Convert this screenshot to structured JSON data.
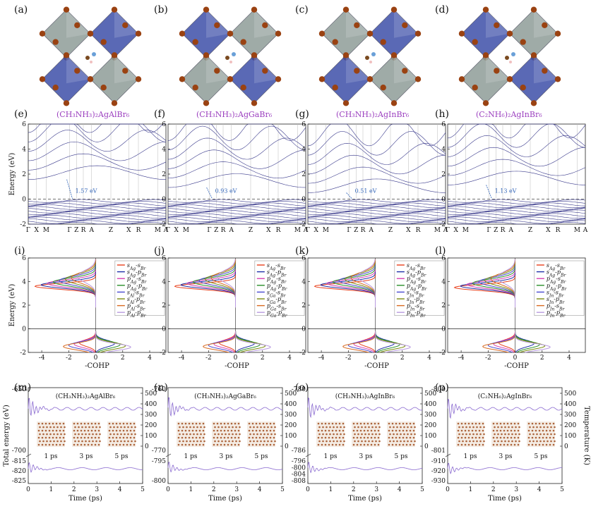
{
  "panel_labels": {
    "structures": [
      "(a)",
      "(b)",
      "(c)",
      "(d)"
    ],
    "bands": [
      "(e)",
      "(f)",
      "(g)",
      "(h)"
    ],
    "cohp": [
      "(i)",
      "(j)",
      "(k)",
      "(l)"
    ],
    "md": [
      "(m)",
      "(n)",
      "(o)",
      "(p)"
    ]
  },
  "compounds": [
    "(CH₃NH₃)₂AgAlBr₆",
    "(CH₃NH₃)₂AgGaBr₆",
    "(CH₃NH₃)₂AgInBr₆",
    "(C₂NH₆)₂AgInBr₆"
  ],
  "md_titles": [
    "(CH₃NH₃)₂AgAlBr₆",
    "(CH₃NH₃)₂AgGaBr₆",
    "(CH₃NH₃)₂AgInBr₆",
    "(C₂NH₆)₂AgInBr₆"
  ],
  "band_kpoints": [
    "Γ",
    "X",
    "M",
    "Γ",
    "Z",
    "R",
    "A",
    "Z",
    "X",
    "R",
    "M",
    "A"
  ],
  "band_gaps": [
    "1.57 eV",
    "0.93 eV",
    "0.51 eV",
    "1.13 eV"
  ],
  "energy_axis_label": "Energy (eV)",
  "cohp_axis_label": "-COHP",
  "energy_ticks": [
    "-2",
    "0",
    "2",
    "4",
    "6"
  ],
  "cohp_ticks": [
    "-4",
    "-2",
    "0",
    "2",
    "4"
  ],
  "cohp_legends": [
    [
      "s_Ag-s_Br",
      "s_Ag-p_Br",
      "p_Ag-s_Br",
      "p_Ag-p_Br",
      "s_Al-s_Br",
      "s_Al-p_Br",
      "p_Al-s_Br",
      "p_Al-p_Br"
    ],
    [
      "s_Ag-s_Br",
      "s_Ag-p_Br",
      "p_Ag-s_Br",
      "p_Ag-p_Br",
      "s_Ga-s_Br",
      "s_Ga-p_Br",
      "p_Ga-s_Br",
      "p_Ga-p_Br"
    ],
    [
      "s_Ag-s_Br",
      "s_Ag-p_Br",
      "p_Ag-s_Br",
      "p_Ag-p_Br",
      "s_In-s_Br",
      "s_In-p_Br",
      "p_In-s_Br",
      "p_In-p_Br"
    ],
    [
      "s_Ag-s_Br",
      "s_Ag-p_Br",
      "p_Ag-s_Br",
      "p_Ag-p_Br",
      "s_In-s_Br",
      "s_In-p_Br",
      "p_In-s_Br",
      "p_In-p_Br"
    ]
  ],
  "cohp_colors": [
    "#e8401c",
    "#1f2fa8",
    "#d63fb0",
    "#2a8f2a",
    "#4a4ad0",
    "#7a8a10",
    "#d86a20",
    "#b89ae0"
  ],
  "md_time_label": "Time (ps)",
  "md_time_ticks": [
    "0",
    "1",
    "2",
    "3",
    "4",
    "5"
  ],
  "md_snapshots": [
    "1 ps",
    "3 ps",
    "5 ps"
  ],
  "md_y_label": "Total energy (eV)",
  "md_temp_label": "Temperature (K)",
  "md_temp_ticks": [
    "500",
    "400",
    "300",
    "200",
    "100",
    "0"
  ],
  "md_energy_upper": [
    [
      "-650",
      "-700"
    ],
    [
      "-760",
      "-770"
    ],
    [
      "-780",
      "-786"
    ],
    [
      "-800",
      "-801"
    ]
  ],
  "md_energy_lower": [
    [
      "-815",
      "-820",
      "-825"
    ],
    [
      "-795",
      "-800"
    ],
    [
      "-796",
      "-800",
      "-804",
      "-808"
    ],
    [
      "-910",
      "-920",
      "-930"
    ]
  ],
  "colors": {
    "band": "#3a3a8c",
    "md": "#8a6ad0",
    "octa_blue": "#3d4fa8",
    "octa_gray": "#8e9c98",
    "atom": "#9a4212"
  }
}
